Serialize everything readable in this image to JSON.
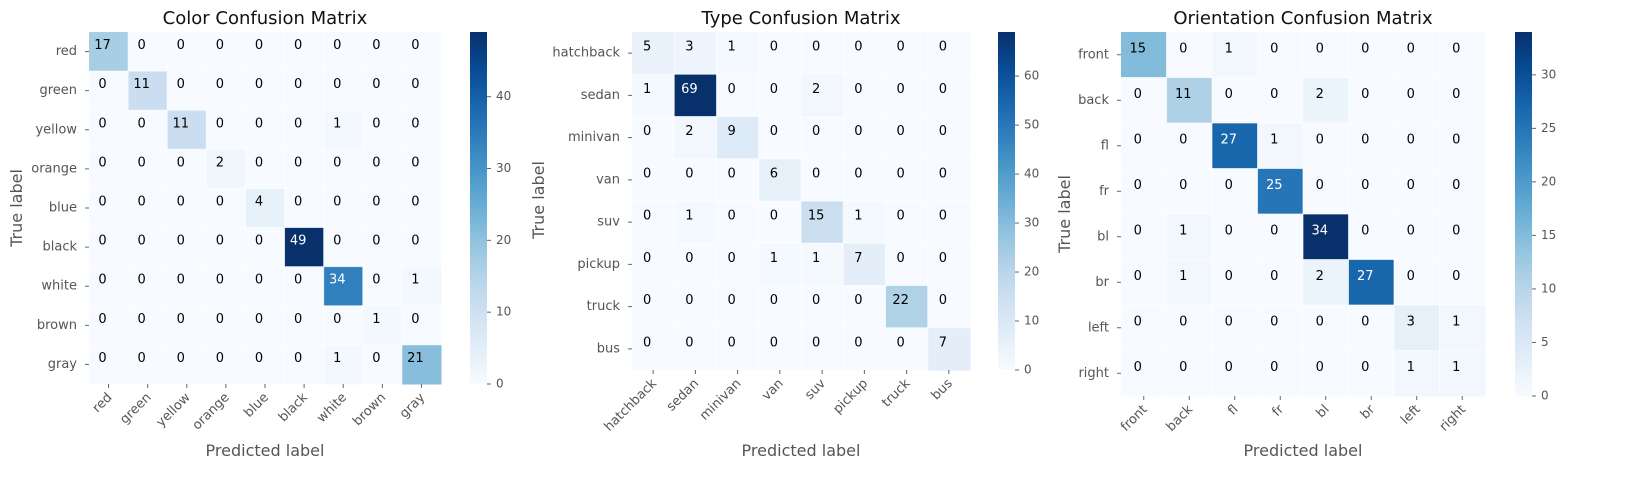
{
  "chart_data": [
    {
      "type": "heatmap",
      "title": "Color Confusion Matrix",
      "xlabel": "Predicted label",
      "ylabel": "True label",
      "labels": [
        "red",
        "green",
        "yellow",
        "orange",
        "blue",
        "black",
        "white",
        "brown",
        "gray"
      ],
      "matrix": [
        [
          17,
          0,
          0,
          0,
          0,
          0,
          0,
          0,
          0
        ],
        [
          0,
          11,
          0,
          0,
          0,
          0,
          0,
          0,
          0
        ],
        [
          0,
          0,
          11,
          0,
          0,
          0,
          1,
          0,
          0
        ],
        [
          0,
          0,
          0,
          2,
          0,
          0,
          0,
          0,
          0
        ],
        [
          0,
          0,
          0,
          0,
          4,
          0,
          0,
          0,
          0
        ],
        [
          0,
          0,
          0,
          0,
          0,
          49,
          0,
          0,
          0
        ],
        [
          0,
          0,
          0,
          0,
          0,
          0,
          34,
          0,
          1
        ],
        [
          0,
          0,
          0,
          0,
          0,
          0,
          0,
          1,
          0
        ],
        [
          0,
          0,
          0,
          0,
          0,
          0,
          1,
          0,
          21
        ]
      ],
      "vmax": 49,
      "colorbar_ticks": [
        0,
        10,
        20,
        30,
        40
      ],
      "colormap": "Blues",
      "grid": true
    },
    {
      "type": "heatmap",
      "title": "Type Confusion Matrix",
      "xlabel": "Predicted label",
      "ylabel": "True label",
      "labels": [
        "hatchback",
        "sedan",
        "minivan",
        "van",
        "suv",
        "pickup",
        "truck",
        "bus"
      ],
      "matrix": [
        [
          5,
          3,
          1,
          0,
          0,
          0,
          0,
          0
        ],
        [
          1,
          69,
          0,
          0,
          2,
          0,
          0,
          0
        ],
        [
          0,
          2,
          9,
          0,
          0,
          0,
          0,
          0
        ],
        [
          0,
          0,
          0,
          6,
          0,
          0,
          0,
          0
        ],
        [
          0,
          1,
          0,
          0,
          15,
          1,
          0,
          0
        ],
        [
          0,
          0,
          0,
          1,
          1,
          7,
          0,
          0
        ],
        [
          0,
          0,
          0,
          0,
          0,
          0,
          22,
          0
        ],
        [
          0,
          0,
          0,
          0,
          0,
          0,
          0,
          7
        ]
      ],
      "vmax": 69,
      "colorbar_ticks": [
        0,
        10,
        20,
        30,
        40,
        50,
        60
      ],
      "colormap": "Blues",
      "grid": true
    },
    {
      "type": "heatmap",
      "title": "Orientation Confusion Matrix",
      "xlabel": "Predicted label",
      "ylabel": "True label",
      "labels": [
        "front",
        "back",
        "fl",
        "fr",
        "bl",
        "br",
        "left",
        "right"
      ],
      "matrix": [
        [
          15,
          0,
          1,
          0,
          0,
          0,
          0,
          0
        ],
        [
          0,
          11,
          0,
          0,
          2,
          0,
          0,
          0
        ],
        [
          0,
          0,
          27,
          1,
          0,
          0,
          0,
          0
        ],
        [
          0,
          0,
          0,
          25,
          0,
          0,
          0,
          0
        ],
        [
          0,
          1,
          0,
          0,
          34,
          0,
          0,
          0
        ],
        [
          0,
          1,
          0,
          0,
          2,
          27,
          0,
          0
        ],
        [
          0,
          0,
          0,
          0,
          0,
          0,
          3,
          1
        ],
        [
          0,
          0,
          0,
          0,
          0,
          0,
          1,
          1
        ]
      ],
      "vmax": 34,
      "colorbar_ticks": [
        0,
        5,
        10,
        15,
        20,
        25,
        30
      ],
      "colormap": "Blues",
      "grid": true
    }
  ],
  "colors": {
    "low": "#f7fbff",
    "high": "#08306b",
    "text_dark": "#000000",
    "text_light": "#ffffff"
  }
}
